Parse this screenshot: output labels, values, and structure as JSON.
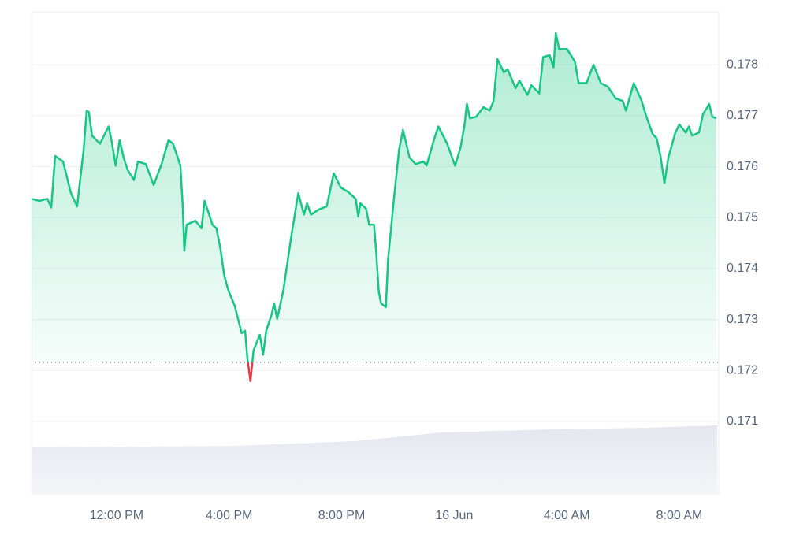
{
  "chart_data": {
    "type": "line",
    "x": [
      8.98,
      9.26,
      9.54,
      9.68,
      9.82,
      10.1,
      10.38,
      10.6,
      10.83,
      10.94,
      11.02,
      11.13,
      11.41,
      11.72,
      11.83,
      11.97,
      12.11,
      12.25,
      12.39,
      12.62,
      12.76,
      13.04,
      13.32,
      13.6,
      13.85,
      14.01,
      14.27,
      14.35,
      14.41,
      14.49,
      14.8,
      15.02,
      15.13,
      15.41,
      15.55,
      15.69,
      15.83,
      15.97,
      16.2,
      16.45,
      16.57,
      16.65,
      16.76,
      16.87,
      17.09,
      17.21,
      17.32,
      17.51,
      17.6,
      17.71,
      17.93,
      18.21,
      18.46,
      18.66,
      18.77,
      18.91,
      19.19,
      19.47,
      19.72,
      19.97,
      20.22,
      20.5,
      20.59,
      20.67,
      20.87,
      20.98,
      21.15,
      21.23,
      21.32,
      21.4,
      21.57,
      21.65,
      21.85,
      22.04,
      22.18,
      22.41,
      22.63,
      22.91,
      23.02,
      23.3,
      23.44,
      23.75,
      24.03,
      24.22,
      24.36,
      24.45,
      24.56,
      24.78,
      25.04,
      25.26,
      25.4,
      25.54,
      25.76,
      25.9,
      26.18,
      26.32,
      26.6,
      26.74,
      27.02,
      27.16,
      27.39,
      27.53,
      27.61,
      27.73,
      28.01,
      28.29,
      28.42,
      28.7,
      28.95,
      29.21,
      29.46,
      29.74,
      29.99,
      30.1,
      30.38,
      30.66,
      30.8,
      31.05,
      31.19,
      31.33,
      31.47,
      31.61,
      31.86,
      32.0,
      32.23,
      32.34,
      32.45,
      32.7,
      32.84,
      33.06,
      33.17,
      33.31
    ],
    "series": [
      {
        "color": "#16c784",
        "values": [
          0.17537,
          0.17533,
          0.17537,
          0.1752,
          0.17621,
          0.1761,
          0.17548,
          0.17522,
          0.17633,
          0.1771,
          0.17707,
          0.17661,
          0.17645,
          0.17679,
          0.17649,
          0.17602,
          0.17652,
          0.17618,
          0.17594,
          0.17574,
          0.1761,
          0.17605,
          0.17564,
          0.17605,
          0.17652,
          0.17645,
          0.17602,
          0.17525,
          0.17435,
          0.17486,
          0.17494,
          0.17479,
          0.17533,
          0.17486,
          0.17479,
          0.1744,
          0.17386,
          0.17358,
          0.17327,
          0.17273,
          0.17278,
          0.17224,
          0.17179,
          0.17239,
          0.1727,
          0.17231,
          0.17278,
          0.17309,
          0.17332,
          0.17301,
          0.17358,
          0.17463,
          0.17548,
          0.17506,
          0.17528,
          0.17506,
          0.17516,
          0.17522,
          0.17587,
          0.17559,
          0.17551,
          0.17537,
          0.17502,
          0.17528,
          0.17517,
          0.17486,
          0.17486,
          0.17432,
          0.17355,
          0.17332,
          0.17324,
          0.17417,
          0.17533,
          0.17633,
          0.17672,
          0.17618,
          0.17605,
          0.1761,
          0.17602,
          0.17656,
          0.17679,
          0.17645,
          0.17602,
          0.17636,
          0.17679,
          0.17723,
          0.17695,
          0.17698,
          0.17717,
          0.1771,
          0.17729,
          0.17811,
          0.17785,
          0.17791,
          0.17754,
          0.17769,
          0.17741,
          0.1776,
          0.17744,
          0.17815,
          0.17819,
          0.17795,
          0.17862,
          0.17831,
          0.17831,
          0.17806,
          0.17764,
          0.17764,
          0.178,
          0.17764,
          0.17757,
          0.17734,
          0.17729,
          0.1771,
          0.17764,
          0.17729,
          0.17703,
          0.17664,
          0.17656,
          0.17621,
          0.17568,
          0.17618,
          0.17667,
          0.17683,
          0.17667,
          0.17679,
          0.17661,
          0.17667,
          0.17703,
          0.17723,
          0.17698,
          0.17695
        ]
      }
    ],
    "below_color": "#ea3943",
    "baseline": 0.17216,
    "xlim": [
      8.98,
      33.4
    ],
    "xticks": [
      {
        "value": 12,
        "label": "12:00 PM"
      },
      {
        "value": 16,
        "label": "4:00 PM"
      },
      {
        "value": 20,
        "label": "8:00 PM"
      },
      {
        "value": 24,
        "label": "16 Jun"
      },
      {
        "value": 28,
        "label": "4:00 AM"
      },
      {
        "value": 32,
        "label": "8:00 AM"
      }
    ],
    "ylim": [
      0.16956,
      0.17904
    ],
    "yticks": [
      0.171,
      0.172,
      0.173,
      0.174,
      0.175,
      0.176,
      0.177,
      0.178
    ],
    "grid": true
  }
}
